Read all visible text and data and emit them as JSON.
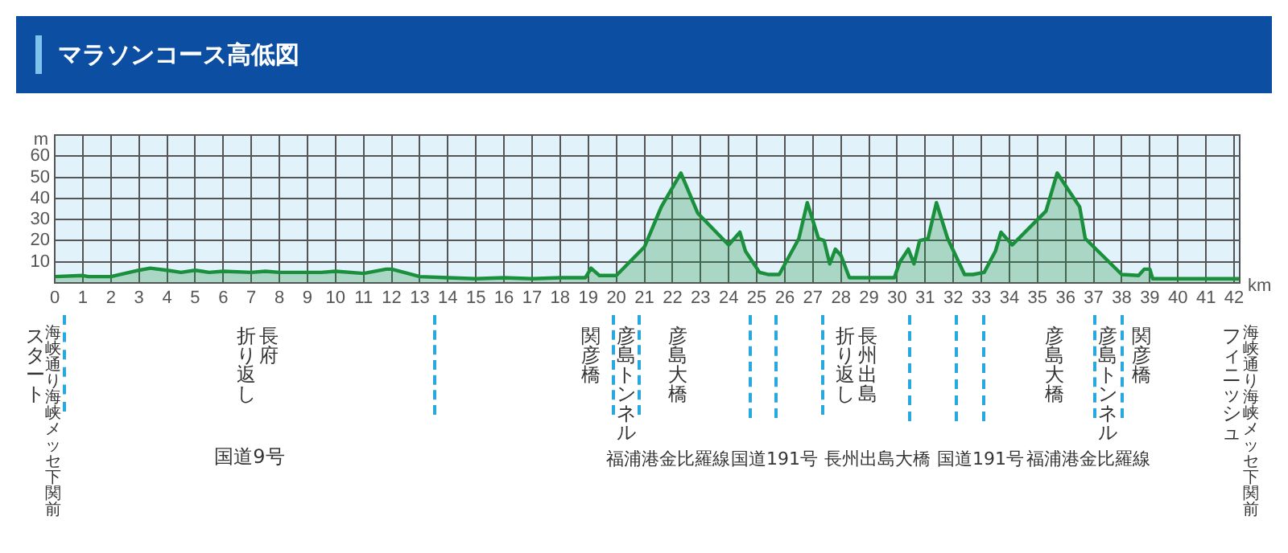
{
  "chart_data": {
    "type": "area",
    "title": "マラソンコース高低図",
    "xlabel": "km",
    "ylabel": "m",
    "x": [
      0,
      1,
      1.2,
      2,
      3,
      3.4,
      4,
      4.5,
      5,
      5.5,
      6,
      7,
      7.5,
      8,
      9,
      9.5,
      10,
      11,
      11.8,
      12,
      13,
      14,
      15,
      16,
      17,
      18,
      18.9,
      19.1,
      19.4,
      20,
      21,
      21.6,
      22.3,
      22.9,
      24,
      24.4,
      24.6,
      25.1,
      25.4,
      25.8,
      26.5,
      26.8,
      27.2,
      27.4,
      27.6,
      27.8,
      28,
      28.3,
      29.9,
      30.1,
      30.4,
      30.6,
      30.8,
      31.1,
      31.4,
      31.8,
      32.4,
      32.7,
      33.1,
      33.5,
      33.7,
      34.1,
      35.3,
      35.7,
      36.5,
      36.7,
      38,
      38.6,
      38.8,
      39,
      39.1,
      42.2
    ],
    "series": [
      {
        "color": "#1a8f3c",
        "values": [
          3,
          3.5,
          3,
          3,
          6,
          7,
          6,
          5,
          6,
          5,
          5.5,
          5,
          5.5,
          5,
          5,
          5,
          5.5,
          4.5,
          6.5,
          6.5,
          3,
          2.5,
          2,
          2.5,
          2,
          2.5,
          2.5,
          7,
          3.5,
          3.5,
          17,
          36,
          52,
          33,
          18,
          24,
          15,
          5,
          4,
          4,
          21,
          38,
          21,
          20,
          9,
          16,
          13,
          2.5,
          2.5,
          10,
          16,
          9,
          20,
          21,
          38,
          21,
          4,
          4,
          5,
          15,
          24,
          18,
          34,
          52,
          36,
          21,
          4,
          3.5,
          6.5,
          6.5,
          2,
          2
        ]
      }
    ],
    "xlim": [
      0,
      42.2
    ],
    "xticks": [
      0,
      1,
      2,
      3,
      4,
      5,
      6,
      7,
      8,
      9,
      10,
      11,
      12,
      13,
      14,
      15,
      16,
      17,
      18,
      19,
      20,
      21,
      22,
      23,
      24,
      25,
      26,
      27,
      28,
      29,
      30,
      31,
      32,
      33,
      34,
      35,
      36,
      37,
      38,
      39,
      40,
      41,
      42
    ],
    "ylim": [
      0,
      70
    ],
    "yticks": [
      10,
      20,
      30,
      40,
      50,
      60
    ],
    "grid": true,
    "annotations": [
      "スタート",
      "海峡通り海峡メッセ下関前",
      "長府折り返し",
      "関彦橋",
      "彦島トンネル",
      "彦島大橋",
      "長州出島折り返し",
      "彦島大橋",
      "彦島トンネル",
      "関彦橋",
      "フィニッシュ",
      "海峡通り海峡メッセ下関前",
      "国道9号",
      "福浦港金比羅線",
      "国道191号",
      "長州出島大橋",
      "国道191号",
      "福浦港金比羅線"
    ]
  }
}
